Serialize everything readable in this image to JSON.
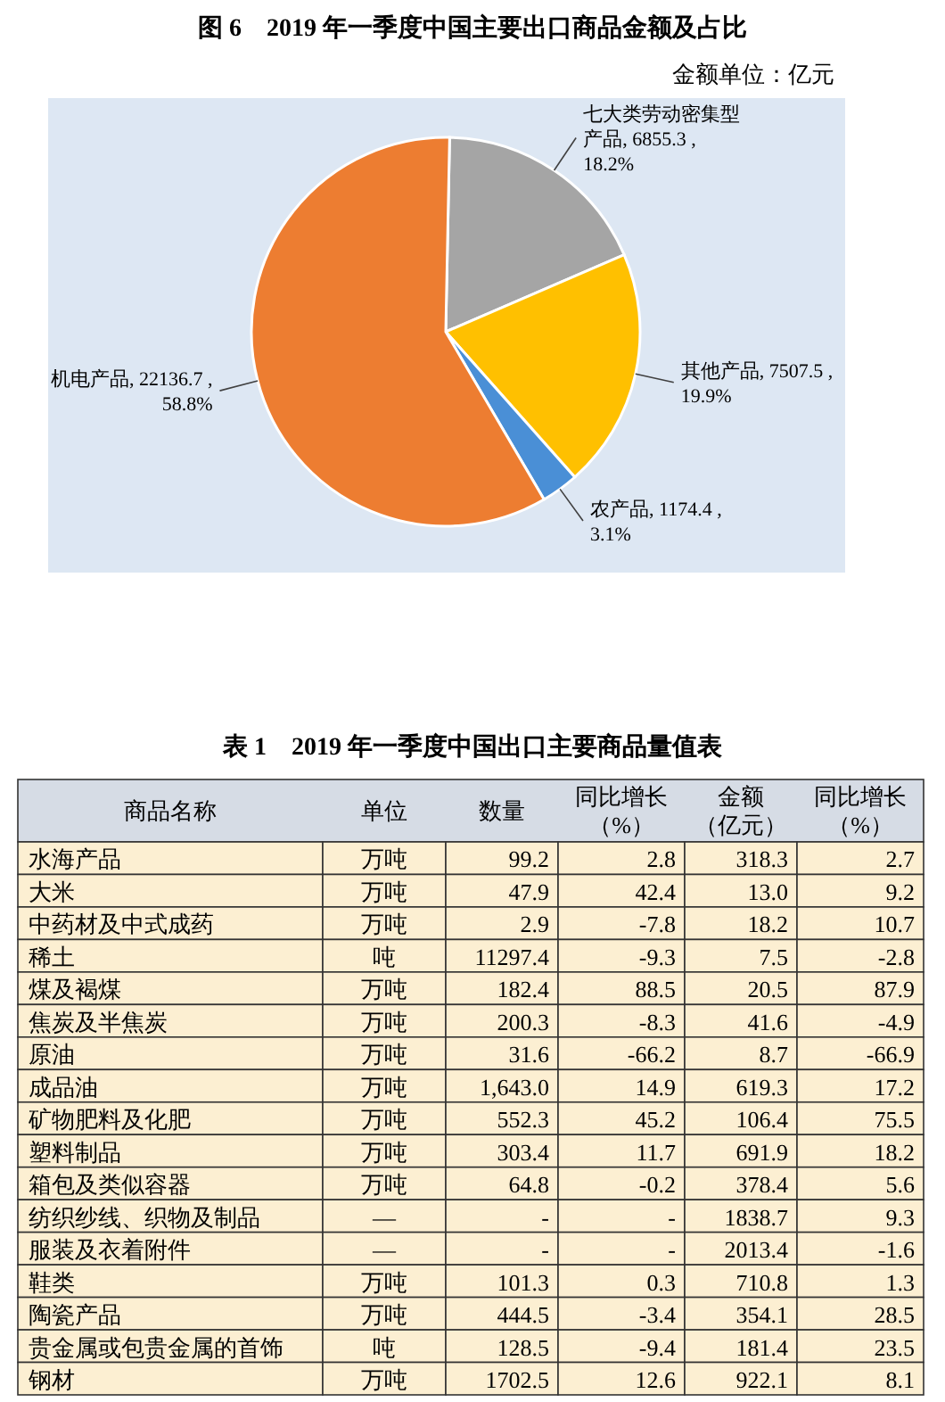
{
  "chart_data": [
    {
      "type": "pie",
      "title": "图 6　2019 年一季度中国主要出口商品金额及占比",
      "subtitle": "金额单位：亿元",
      "categories": [
        "七大类劳动密集型产品",
        "其他产品",
        "农产品",
        "机电产品"
      ],
      "values": [
        6855.3,
        7507.5,
        1174.4,
        22136.7
      ],
      "colors": [
        "#a5a5a5",
        "#ffc000",
        "#4a8fd6",
        "#ed7d31"
      ],
      "value_labels": [
        ", 6855.3 , 18.2%",
        ", 7507.5 , 19.9%",
        ", 1174.4 , 3.1%",
        ", 22136.7 , 58.8%"
      ]
    },
    {
      "type": "other",
      "title": "表 1　2019 年一季度中国出口主要商品量值表",
      "ylabel": "商品名称",
      "categories": [
        "单位",
        "数量",
        "同比增长（%）",
        "金额（亿元）",
        "同比增长（%）"
      ],
      "y_categories": [
        "水海产品",
        "大米",
        "中药材及中式成药",
        "稀土",
        "煤及褐煤",
        "焦炭及半焦炭",
        "原油",
        "成品油",
        "矿物肥料及化肥",
        "塑料制品",
        "箱包及类似容器",
        "纺织纱线、织物及制品",
        "服装及衣着附件",
        "鞋类",
        "陶瓷产品",
        "贵金属或包贵金属的首饰",
        "钢材"
      ],
      "cell_labels": [
        [
          "万吨",
          "99.2",
          "2.8",
          "318.3",
          "2.7"
        ],
        [
          "万吨",
          "47.9",
          "42.4",
          "13.0",
          "9.2"
        ],
        [
          "万吨",
          "2.9",
          "-7.8",
          "18.2",
          "10.7"
        ],
        [
          "吨",
          "11297.4",
          "-9.3",
          "7.5",
          "-2.8"
        ],
        [
          "万吨",
          "182.4",
          "88.5",
          "20.5",
          "87.9"
        ],
        [
          "万吨",
          "200.3",
          "-8.3",
          "41.6",
          "-4.9"
        ],
        [
          "万吨",
          "31.6",
          "-66.2",
          "8.7",
          "-66.9"
        ],
        [
          "万吨",
          "1,643.0",
          "14.9",
          "619.3",
          "17.2"
        ],
        [
          "万吨",
          "552.3",
          "45.2",
          "106.4",
          "75.5"
        ],
        [
          "万吨",
          "303.4",
          "11.7",
          "691.9",
          "18.2"
        ],
        [
          "万吨",
          "64.8",
          "-0.2",
          "378.4",
          "5.6"
        ],
        [
          "—",
          "-",
          "-",
          "1838.7",
          "9.3"
        ],
        [
          "—",
          "-",
          "-",
          "2013.4",
          "-1.6"
        ],
        [
          "万吨",
          "101.3",
          "0.3",
          "710.8",
          "1.3"
        ],
        [
          "万吨",
          "444.5",
          "-3.4",
          "354.1",
          "28.5"
        ],
        [
          "吨",
          "128.5",
          "-9.4",
          "181.4",
          "23.5"
        ],
        [
          "万吨",
          "1702.5",
          "12.6",
          "922.1",
          "8.1"
        ]
      ],
      "color": "#fcefd2"
    }
  ]
}
